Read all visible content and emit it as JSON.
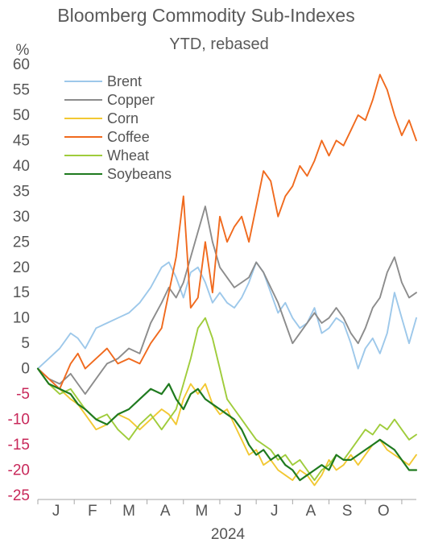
{
  "chart_data": {
    "type": "line",
    "title": "Bloomberg Commodity Sub-Indexes",
    "subtitle": "YTD, rebased",
    "ylabel": "%",
    "xlabel": "2024",
    "ylim": [
      -25,
      60
    ],
    "yticks": [
      60,
      55,
      50,
      45,
      40,
      35,
      30,
      25,
      20,
      15,
      10,
      5,
      0,
      -5,
      -10,
      -15,
      -20,
      -25
    ],
    "negative_tick_color": "#c8285a",
    "x_domain": [
      0,
      10.4
    ],
    "categories": [
      "J",
      "F",
      "M",
      "A",
      "M",
      "J",
      "J",
      "A",
      "S",
      "O"
    ],
    "grid": false,
    "legend_position": "top-left",
    "series": [
      {
        "name": "Brent",
        "color": "#9dc8ea",
        "x": [
          0,
          0.3,
          0.6,
          0.9,
          1.1,
          1.3,
          1.6,
          1.9,
          2.2,
          2.5,
          2.8,
          3.1,
          3.4,
          3.6,
          3.8,
          4.0,
          4.2,
          4.4,
          4.6,
          4.8,
          5.0,
          5.2,
          5.4,
          5.6,
          5.8,
          6.0,
          6.2,
          6.4,
          6.6,
          6.8,
          7.0,
          7.2,
          7.4,
          7.6,
          7.8,
          8.0,
          8.2,
          8.4,
          8.6,
          8.8,
          9.0,
          9.2,
          9.4,
          9.6,
          9.8,
          10.0,
          10.2,
          10.4
        ],
        "values": [
          0,
          2,
          4,
          7,
          6,
          4,
          8,
          9,
          10,
          11,
          13,
          16,
          20,
          21,
          18,
          14,
          19,
          20,
          17,
          13,
          15,
          13,
          12,
          14,
          17,
          21,
          19,
          15,
          11,
          13,
          10,
          8,
          9,
          12,
          7,
          8,
          10,
          9,
          5,
          0,
          4,
          6,
          3,
          7,
          15,
          10,
          5,
          10
        ]
      },
      {
        "name": "Copper",
        "color": "#8c8c8c",
        "x": [
          0,
          0.3,
          0.6,
          0.9,
          1.1,
          1.3,
          1.6,
          1.9,
          2.2,
          2.5,
          2.8,
          3.1,
          3.4,
          3.6,
          3.8,
          4.0,
          4.2,
          4.4,
          4.6,
          4.8,
          5.0,
          5.2,
          5.4,
          5.6,
          5.8,
          6.0,
          6.2,
          6.4,
          6.6,
          6.8,
          7.0,
          7.2,
          7.4,
          7.6,
          7.8,
          8.0,
          8.2,
          8.4,
          8.6,
          8.8,
          9.0,
          9.2,
          9.4,
          9.6,
          9.8,
          10.0,
          10.2,
          10.4
        ],
        "values": [
          0,
          -2,
          -3,
          -1,
          -3,
          -5,
          -2,
          1,
          2,
          4,
          3,
          9,
          13,
          16,
          14,
          17,
          22,
          27,
          32,
          25,
          20,
          18,
          16,
          17,
          18,
          21,
          19,
          16,
          13,
          9,
          5,
          7,
          9,
          11,
          9,
          10,
          12,
          10,
          7,
          5,
          8,
          12,
          14,
          19,
          22,
          17,
          14,
          15
        ]
      },
      {
        "name": "Corn",
        "color": "#f2c833",
        "x": [
          0,
          0.3,
          0.6,
          0.9,
          1.1,
          1.3,
          1.6,
          1.9,
          2.2,
          2.5,
          2.8,
          3.1,
          3.4,
          3.6,
          3.8,
          4.0,
          4.2,
          4.4,
          4.6,
          4.8,
          5.0,
          5.2,
          5.4,
          5.6,
          5.8,
          6.0,
          6.2,
          6.4,
          6.6,
          6.8,
          7.0,
          7.2,
          7.4,
          7.6,
          7.8,
          8.0,
          8.2,
          8.4,
          8.6,
          8.8,
          9.0,
          9.2,
          9.4,
          9.6,
          9.8,
          10.0,
          10.2,
          10.4
        ],
        "values": [
          0,
          -3,
          -4,
          -6,
          -7,
          -9,
          -12,
          -11,
          -9,
          -10,
          -12,
          -10,
          -8,
          -9,
          -11,
          -6,
          -3,
          -5,
          -3,
          -7,
          -9,
          -8,
          -11,
          -14,
          -17,
          -16,
          -19,
          -18,
          -20,
          -21,
          -22,
          -20,
          -21,
          -23,
          -21,
          -18,
          -20,
          -19,
          -17,
          -19,
          -17,
          -15,
          -14,
          -16,
          -17,
          -18,
          -19,
          -17
        ]
      },
      {
        "name": "Coffee",
        "color": "#f06a1e",
        "x": [
          0,
          0.3,
          0.6,
          0.9,
          1.1,
          1.3,
          1.6,
          1.9,
          2.2,
          2.5,
          2.8,
          3.1,
          3.4,
          3.6,
          3.8,
          4.0,
          4.2,
          4.4,
          4.6,
          4.8,
          5.0,
          5.2,
          5.4,
          5.6,
          5.8,
          6.0,
          6.2,
          6.4,
          6.6,
          6.8,
          7.0,
          7.2,
          7.4,
          7.6,
          7.8,
          8.0,
          8.2,
          8.4,
          8.6,
          8.8,
          9.0,
          9.2,
          9.4,
          9.6,
          9.8,
          10.0,
          10.2,
          10.4
        ],
        "values": [
          0,
          -2,
          -4,
          1,
          3,
          0,
          2,
          4,
          1,
          2,
          1,
          5,
          8,
          15,
          22,
          34,
          12,
          14,
          25,
          15,
          30,
          25,
          28,
          30,
          25,
          32,
          39,
          37,
          30,
          34,
          36,
          40,
          38,
          41,
          45,
          42,
          45,
          44,
          47,
          50,
          49,
          53,
          58,
          55,
          50,
          46,
          49,
          45
        ]
      },
      {
        "name": "Wheat",
        "color": "#9fcc3b",
        "x": [
          0,
          0.3,
          0.6,
          0.9,
          1.1,
          1.3,
          1.6,
          1.9,
          2.2,
          2.5,
          2.8,
          3.1,
          3.4,
          3.6,
          3.8,
          4.0,
          4.2,
          4.4,
          4.6,
          4.8,
          5.0,
          5.2,
          5.4,
          5.6,
          5.8,
          6.0,
          6.2,
          6.4,
          6.6,
          6.8,
          7.0,
          7.2,
          7.4,
          7.6,
          7.8,
          8.0,
          8.2,
          8.4,
          8.6,
          8.8,
          9.0,
          9.2,
          9.4,
          9.6,
          9.8,
          10.0,
          10.2,
          10.4
        ],
        "values": [
          0,
          -3,
          -5,
          -4,
          -6,
          -8,
          -10,
          -9,
          -12,
          -14,
          -11,
          -9,
          -12,
          -10,
          -8,
          -3,
          2,
          8,
          10,
          6,
          0,
          -6,
          -8,
          -10,
          -12,
          -14,
          -15,
          -16,
          -18,
          -17,
          -19,
          -18,
          -20,
          -22,
          -20,
          -19,
          -17,
          -18,
          -16,
          -14,
          -12,
          -13,
          -11,
          -12,
          -10,
          -12,
          -14,
          -13
        ]
      },
      {
        "name": "Soybeans",
        "color": "#1f7a1f",
        "x": [
          0,
          0.3,
          0.6,
          0.9,
          1.1,
          1.3,
          1.6,
          1.9,
          2.2,
          2.5,
          2.8,
          3.1,
          3.4,
          3.6,
          3.8,
          4.0,
          4.2,
          4.4,
          4.6,
          4.8,
          5.0,
          5.2,
          5.4,
          5.6,
          5.8,
          6.0,
          6.2,
          6.4,
          6.6,
          6.8,
          7.0,
          7.2,
          7.4,
          7.6,
          7.8,
          8.0,
          8.2,
          8.4,
          8.6,
          8.8,
          9.0,
          9.2,
          9.4,
          9.6,
          9.8,
          10.0,
          10.2,
          10.4
        ],
        "values": [
          0,
          -3,
          -4,
          -5,
          -7,
          -8,
          -10,
          -11,
          -9,
          -8,
          -6,
          -4,
          -5,
          -3,
          -6,
          -8,
          -5,
          -4,
          -6,
          -7,
          -8,
          -9,
          -10,
          -12,
          -15,
          -17,
          -16,
          -18,
          -17,
          -19,
          -20,
          -22,
          -21,
          -20,
          -19,
          -20,
          -17,
          -18,
          -18,
          -17,
          -16,
          -15,
          -14,
          -15,
          -16,
          -18,
          -20,
          -20
        ]
      }
    ]
  }
}
